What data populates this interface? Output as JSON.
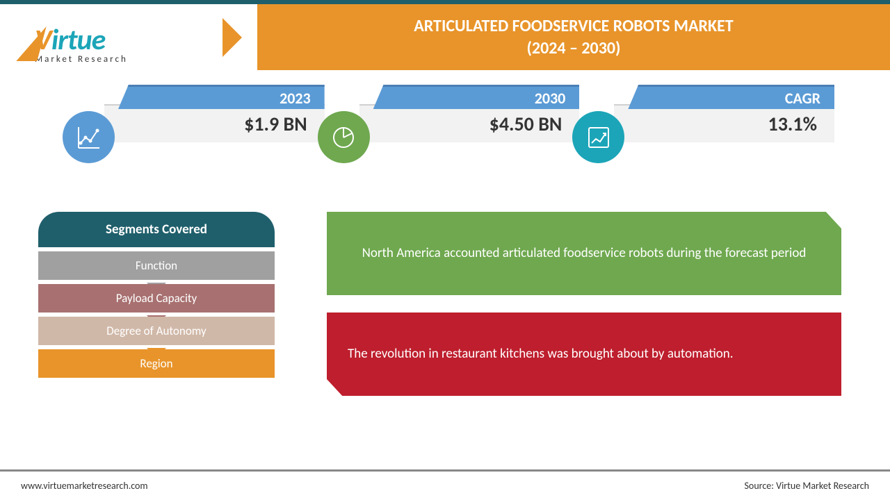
{
  "colors": {
    "orange": "#e8942a",
    "teal": "#1ca5b8",
    "dark_teal": "#1f5f6b",
    "blue": "#5b9bd5",
    "green": "#6fa84f",
    "red": "#be1e2d",
    "gray": "#a0a0a0",
    "brown": "#b08080",
    "light_brown": "#d0b8a8"
  },
  "logo": {
    "part1": "V",
    "part2": "irtue",
    "sub": "Market Research"
  },
  "header": {
    "line1": "ARTICULATED FOODSERVICE ROBOTS MARKET",
    "line2": "(2024 – 2030)"
  },
  "stats": [
    {
      "year": "2023",
      "value": "$1.9 BN",
      "icon_bg": "#5b9bd5"
    },
    {
      "year": "2030",
      "value": "$4.50 BN",
      "icon_bg": "#6fa84f"
    },
    {
      "year": "CAGR",
      "value": "13.1%",
      "icon_bg": "#1ca5b8"
    }
  ],
  "segments": {
    "title": "Segments Covered",
    "items": [
      {
        "label": "Function",
        "bg": "#a0a0a0",
        "arrow": "#a0a0a0"
      },
      {
        "label": "Payload Capacity",
        "bg": "#a87070",
        "arrow": "#a87070"
      },
      {
        "label": "Degree of Autonomy",
        "bg": "#d0b8a8",
        "arrow": "#e8942a"
      },
      {
        "label": "Region",
        "bg": "#e8942a",
        "arrow": null
      }
    ]
  },
  "callouts": {
    "green": "North America accounted articulated foodservice robots during the forecast period",
    "red": "The revolution in restaurant kitchens was brought about by automation."
  },
  "footer": {
    "left": "www.virtuemarketresearch.com",
    "right": "Source: Virtue Market Research"
  }
}
